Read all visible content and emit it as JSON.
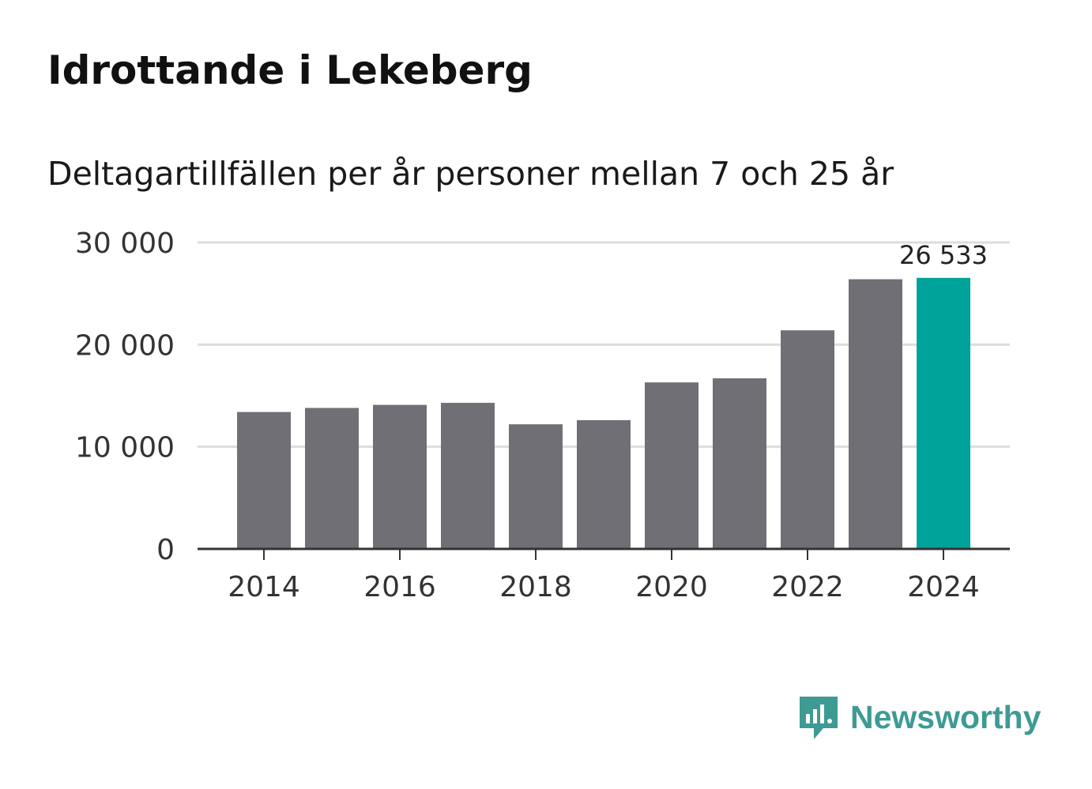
{
  "title": "Idrottande i Lekeberg",
  "subtitle": "Deltagartillfällen per år personer mellan 7 och 25 år",
  "brand": {
    "name": "Newsworthy",
    "icon": "newsworthy-logo-icon"
  },
  "colors": {
    "bar": "#706f75",
    "highlight": "#00a399",
    "grid": "#dddddd",
    "axis": "#333333",
    "brand": "#3d9b94"
  },
  "chart_data": {
    "type": "bar",
    "title": "Idrottande i Lekeberg",
    "subtitle": "Deltagartillfällen per år personer mellan 7 och 25 år",
    "xlabel": "",
    "ylabel": "",
    "categories": [
      "2014",
      "2015",
      "2016",
      "2017",
      "2018",
      "2019",
      "2020",
      "2021",
      "2022",
      "2023",
      "2024"
    ],
    "values": [
      13400,
      13800,
      14100,
      14300,
      12200,
      12600,
      16300,
      16700,
      21400,
      26400,
      26533
    ],
    "ylim": [
      0,
      30000
    ],
    "yticks": [
      0,
      10000,
      20000,
      30000
    ],
    "ytick_labels": [
      "0",
      "10 000",
      "20 000",
      "30 000"
    ],
    "xtick_labels": [
      "2014",
      "2016",
      "2018",
      "2020",
      "2022",
      "2024"
    ],
    "highlight_index": 10,
    "data_labels": [
      {
        "index": 10,
        "text": "26 533"
      }
    ],
    "grid": true
  }
}
